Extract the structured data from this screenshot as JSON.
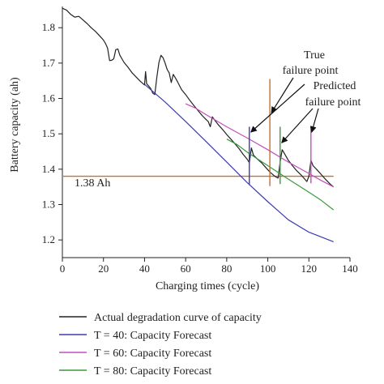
{
  "chart_data": {
    "type": "line",
    "xlabel": "Charging times (cycle)",
    "ylabel": "Battery capacity (ah)",
    "xlim": [
      0,
      140
    ],
    "ylim": [
      1.15,
      1.86
    ],
    "xticks": [
      0,
      20,
      40,
      60,
      80,
      100,
      120,
      140
    ],
    "yticks": [
      1.2,
      1.3,
      1.4,
      1.5,
      1.6,
      1.7,
      1.8
    ],
    "grid": false,
    "legend_position": "bottom",
    "series": [
      {
        "name": "Actual degradation curve of capacity",
        "color": "#222222",
        "points": [
          [
            0,
            1.855
          ],
          [
            2,
            1.85
          ],
          [
            4,
            1.838
          ],
          [
            6,
            1.83
          ],
          [
            8,
            1.832
          ],
          [
            10,
            1.822
          ],
          [
            12,
            1.812
          ],
          [
            14,
            1.8
          ],
          [
            16,
            1.79
          ],
          [
            18,
            1.778
          ],
          [
            20,
            1.765
          ],
          [
            21,
            1.755
          ],
          [
            22,
            1.742
          ],
          [
            23,
            1.707
          ],
          [
            24,
            1.708
          ],
          [
            25,
            1.712
          ],
          [
            26,
            1.738
          ],
          [
            27,
            1.74
          ],
          [
            28,
            1.722
          ],
          [
            30,
            1.702
          ],
          [
            32,
            1.688
          ],
          [
            34,
            1.672
          ],
          [
            36,
            1.66
          ],
          [
            38,
            1.648
          ],
          [
            39,
            1.643
          ],
          [
            40,
            1.638
          ],
          [
            40.5,
            1.676
          ],
          [
            41,
            1.642
          ],
          [
            43,
            1.628
          ],
          [
            44,
            1.615
          ],
          [
            45,
            1.611
          ],
          [
            46,
            1.66
          ],
          [
            47,
            1.702
          ],
          [
            48,
            1.722
          ],
          [
            49,
            1.715
          ],
          [
            50,
            1.7
          ],
          [
            51,
            1.682
          ],
          [
            52,
            1.672
          ],
          [
            53,
            1.645
          ],
          [
            54,
            1.668
          ],
          [
            55,
            1.658
          ],
          [
            56,
            1.648
          ],
          [
            58,
            1.625
          ],
          [
            60,
            1.611
          ],
          [
            62,
            1.595
          ],
          [
            64,
            1.58
          ],
          [
            66,
            1.566
          ],
          [
            68,
            1.552
          ],
          [
            70,
            1.54
          ],
          [
            71,
            1.535
          ],
          [
            72,
            1.52
          ],
          [
            73,
            1.548
          ],
          [
            74,
            1.54
          ],
          [
            76,
            1.525
          ],
          [
            78,
            1.512
          ],
          [
            80,
            1.498
          ],
          [
            82,
            1.485
          ],
          [
            84,
            1.472
          ],
          [
            86,
            1.458
          ],
          [
            88,
            1.442
          ],
          [
            90,
            1.428
          ],
          [
            91,
            1.418
          ],
          [
            92,
            1.46
          ],
          [
            93,
            1.44
          ],
          [
            95,
            1.428
          ],
          [
            97,
            1.418
          ],
          [
            99,
            1.405
          ],
          [
            101,
            1.392
          ],
          [
            103,
            1.382
          ],
          [
            104,
            1.378
          ],
          [
            105,
            1.375
          ],
          [
            106,
            1.42
          ],
          [
            107,
            1.455
          ],
          [
            108,
            1.445
          ],
          [
            110,
            1.425
          ],
          [
            112,
            1.41
          ],
          [
            114,
            1.396
          ],
          [
            116,
            1.385
          ],
          [
            118,
            1.372
          ],
          [
            119,
            1.365
          ],
          [
            120,
            1.38
          ],
          [
            121,
            1.425
          ],
          [
            122,
            1.41
          ],
          [
            124,
            1.398
          ],
          [
            126,
            1.385
          ],
          [
            128,
            1.372
          ],
          [
            130,
            1.36
          ],
          [
            132,
            1.35
          ]
        ]
      },
      {
        "name": "T = 40: Capacity Forecast",
        "color": "#3b3bb0",
        "points": [
          [
            40,
            1.64
          ],
          [
            50,
            1.59
          ],
          [
            60,
            1.535
          ],
          [
            70,
            1.478
          ],
          [
            80,
            1.42
          ],
          [
            90,
            1.362
          ],
          [
            100,
            1.308
          ],
          [
            110,
            1.257
          ],
          [
            120,
            1.222
          ],
          [
            132,
            1.195
          ]
        ]
      },
      {
        "name": "T = 60: Capacity Forecast",
        "color": "#c04ec0",
        "points": [
          [
            60,
            1.585
          ],
          [
            65,
            1.572
          ],
          [
            70,
            1.554
          ],
          [
            80,
            1.52
          ],
          [
            90,
            1.488
          ],
          [
            100,
            1.455
          ],
          [
            110,
            1.42
          ],
          [
            120,
            1.388
          ],
          [
            126,
            1.368
          ],
          [
            132,
            1.35
          ]
        ]
      },
      {
        "name": "T = 80: Capacity Forecast",
        "color": "#3a9a3a",
        "points": [
          [
            80,
            1.485
          ],
          [
            85,
            1.47
          ],
          [
            90,
            1.448
          ],
          [
            100,
            1.41
          ],
          [
            110,
            1.372
          ],
          [
            120,
            1.335
          ],
          [
            126,
            1.312
          ],
          [
            132,
            1.285
          ]
        ]
      }
    ],
    "threshold": {
      "value": 1.38,
      "x_from": 0,
      "x_to": 132,
      "color": "#c8712a",
      "label": "1.38 Ah"
    },
    "markers": [
      {
        "type": "vline",
        "x": 101,
        "y_from": 1.352,
        "y_to": 1.655,
        "color": "#c8712a"
      },
      {
        "type": "vline",
        "x": 91,
        "y_from": 1.355,
        "y_to": 1.52,
        "color": "#3b3bb0"
      },
      {
        "type": "vline",
        "x": 121,
        "y_from": 1.36,
        "y_to": 1.522,
        "color": "#c04ec0"
      },
      {
        "type": "vline",
        "x": 106,
        "y_from": 1.358,
        "y_to": 1.52,
        "color": "#3a9a3a"
      }
    ],
    "annotations": {
      "true_failure_line1": "True",
      "true_failure_line2": "failure point",
      "predicted_failure_line1": "Predicted",
      "predicted_failure_line2": "failure point"
    }
  }
}
